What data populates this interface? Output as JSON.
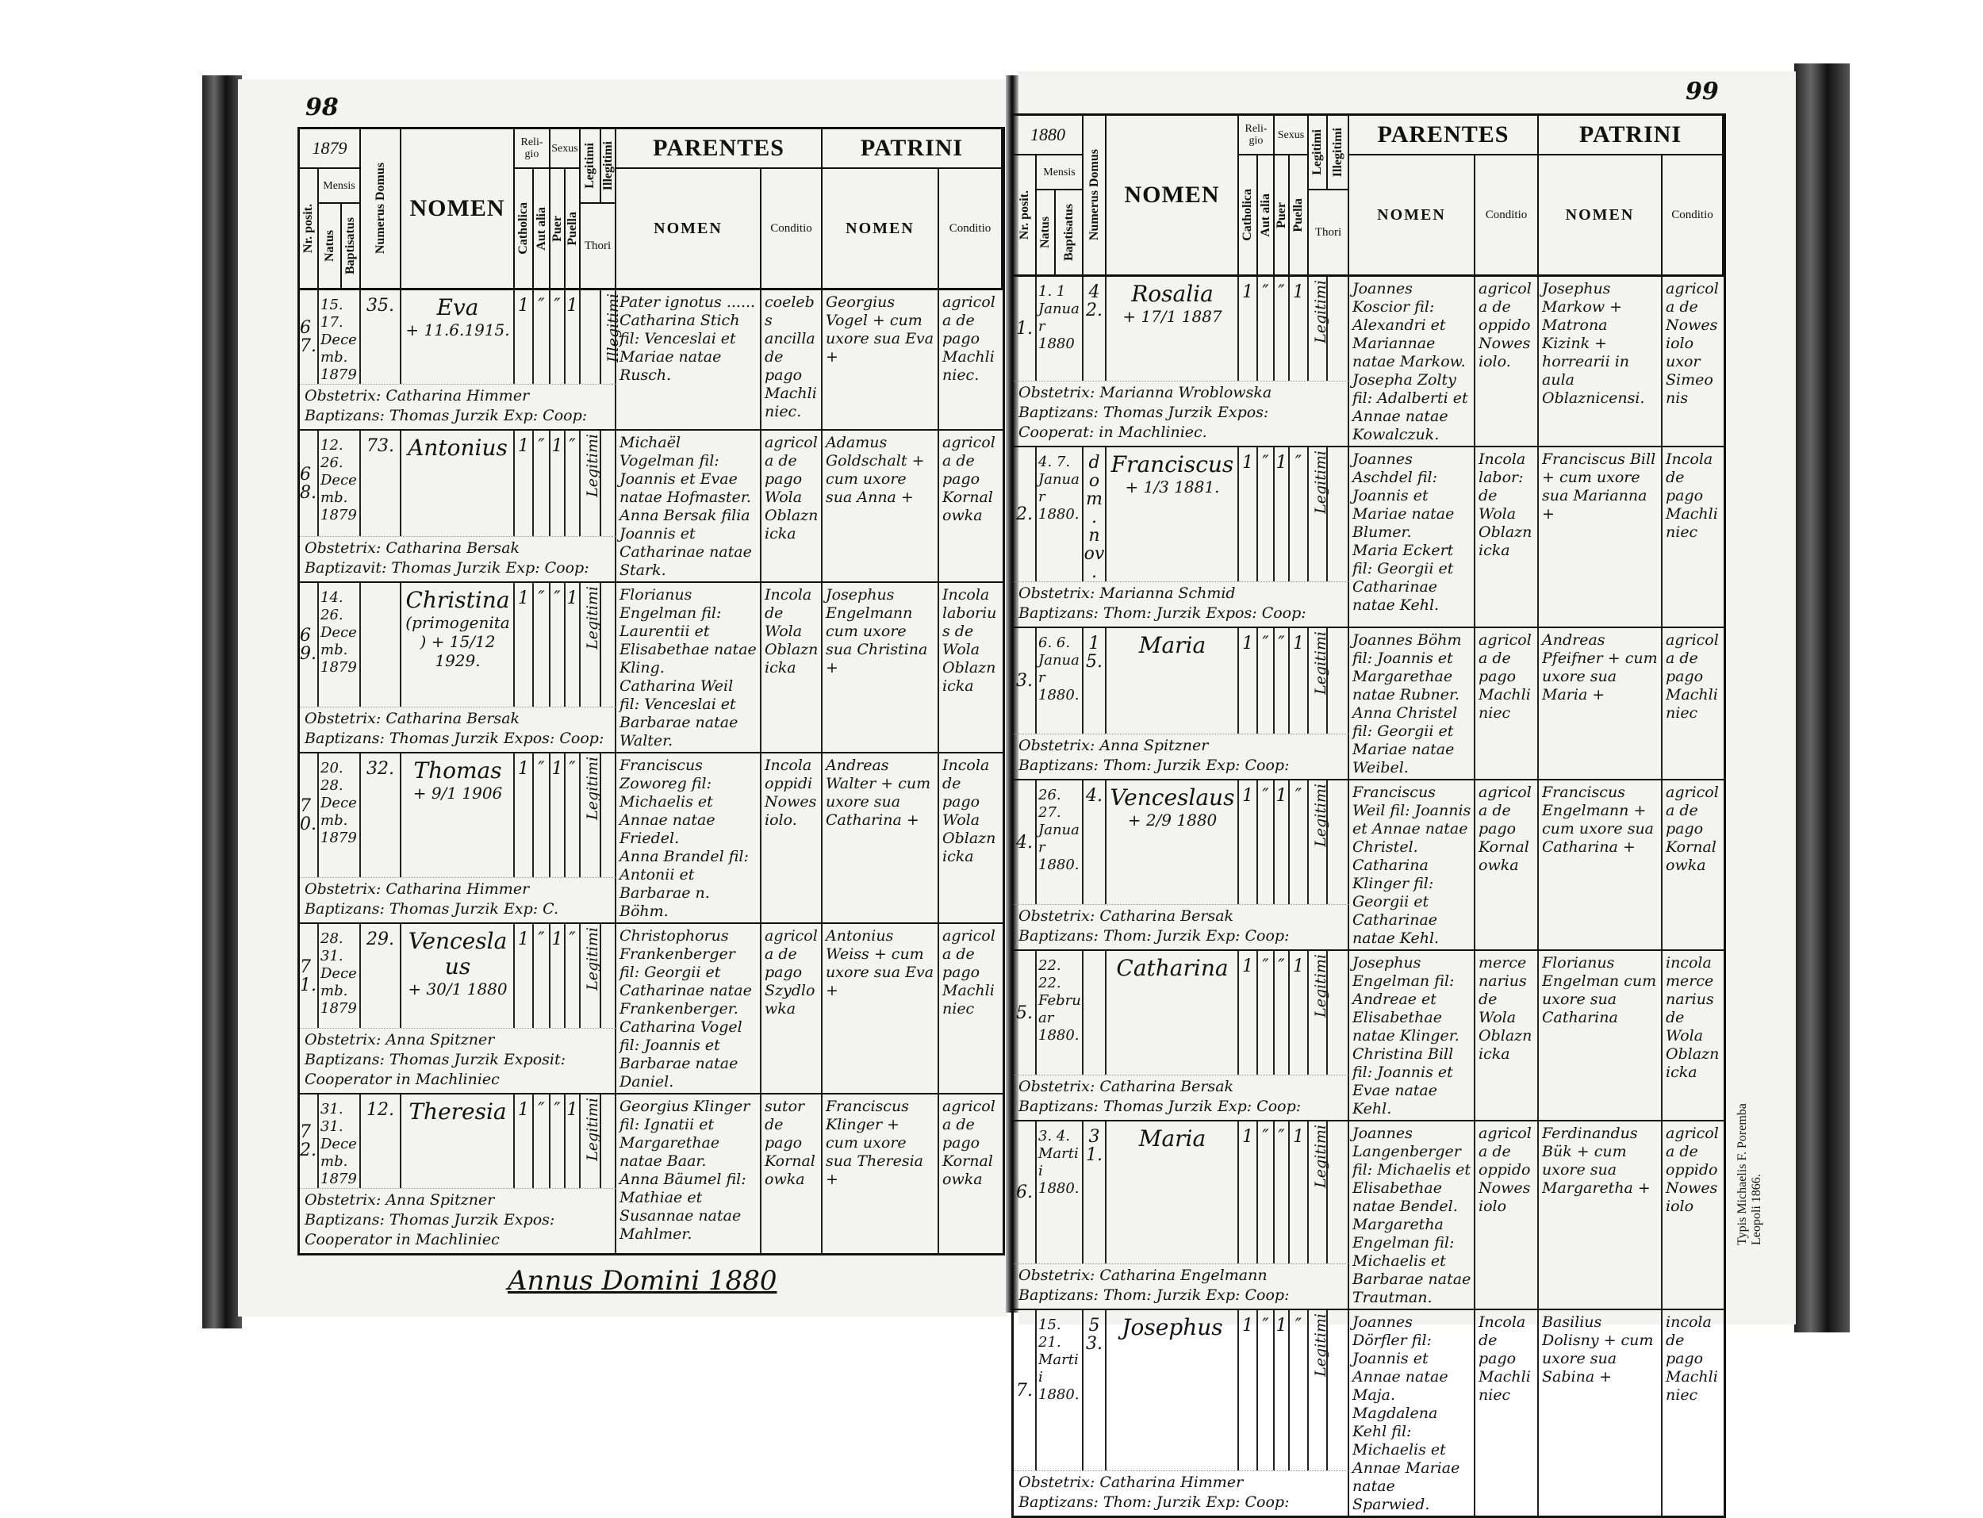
{
  "header": {
    "religio": "Reli-gio",
    "catholica": "Catholica",
    "aut_alia": "Aut alia",
    "sexus": "Sexus",
    "puer": "Puer",
    "puella": "Puella",
    "legitimi": "Legitimi",
    "illegitimi": "Illegitimi",
    "thori": "Thori",
    "nr_posit": "Nr. posit.",
    "mensis": "Mensis",
    "natus": "Natus",
    "baptisatus": "Baptisatus",
    "numerus_domus": "Numerus Domus",
    "nomen": "NOMEN",
    "parentes": "PARENTES",
    "patrini": "PATRINI",
    "sub_nomen": "NOMEN",
    "conditio": "Conditio"
  },
  "left_page": {
    "page_number": "98",
    "year": "1879",
    "footer": "Annus Domini 1880",
    "entries": [
      {
        "nr": "67.",
        "natus": "15.",
        "baptisatus": "17.",
        "month": "Decemb.",
        "year": "1879",
        "domus": "35.",
        "nomen": "Eva",
        "note": "+ 11.6.1915.",
        "religio": [
          "1",
          "″"
        ],
        "sexus": [
          "″",
          "1"
        ],
        "thori": "",
        "thori_ill": "Illegitimi",
        "obstetrix": "Obstetrix: Catharina Himmer",
        "baptizans": "Baptizans: Thomas Jurzik Exp: Coop:",
        "par_pater": "Pater ignotus ......",
        "par_mater": "Catharina Stich fil: Venceslai et Mariae natae Rusch.",
        "par_cond": "coelebs ancilla de pago Machliniec.",
        "pat_nomen": "Georgius Vogel + cum uxore sua Eva +",
        "pat_cond": "agricola de pago Machliniec."
      },
      {
        "nr": "68.",
        "natus": "12.",
        "baptisatus": "26.",
        "month": "Decemb.",
        "year": "1879",
        "domus": "73.",
        "nomen": "Antonius",
        "note": "",
        "religio": [
          "1",
          "″"
        ],
        "sexus": [
          "1",
          "″"
        ],
        "thori": "Legitimi",
        "thori_ill": "",
        "obstetrix": "Obstetrix: Catharina Bersak",
        "baptizans": "Baptizavit: Thomas Jurzik Exp: Coop:",
        "par_pater": "Michaël Vogelman fil: Joannis et Evae natae Hofmaster.",
        "par_mater": "Anna Bersak filia Joannis et Catharinae natae Stark.",
        "par_cond": "agricola de pago Wola Oblaznicka",
        "pat_nomen": "Adamus Goldschalt + cum uxore sua Anna +",
        "pat_cond": "agricola de pago Kornalowka"
      },
      {
        "nr": "69.",
        "natus": "14.",
        "baptisatus": "26.",
        "month": "Decemb.",
        "year": "1879",
        "domus": "",
        "nomen": "Christina",
        "note": "(primogenita) + 15/12 1929.",
        "religio": [
          "1",
          "″"
        ],
        "sexus": [
          "″",
          "1"
        ],
        "thori": "Legitimi",
        "thori_ill": "",
        "obstetrix": "Obstetrix: Catharina Bersak",
        "baptizans": "Baptizans: Thomas Jurzik Expos: Coop:",
        "par_pater": "Florianus Engelman fil: Laurentii et Elisabethae natae Kling.",
        "par_mater": "Catharina Weil fil: Venceslai et Barbarae natae Walter.",
        "par_cond": "Incola de Wola Oblaznicka",
        "pat_nomen": "Josephus Engelmann cum uxore sua Christina +",
        "pat_cond": "Incola laborius de Wola Oblaznicka"
      },
      {
        "nr": "70.",
        "natus": "20.",
        "baptisatus": "28.",
        "month": "Decemb.",
        "year": "1879",
        "domus": "32.",
        "nomen": "Thomas",
        "note": "+ 9/1 1906",
        "religio": [
          "1",
          "″"
        ],
        "sexus": [
          "1",
          "″"
        ],
        "thori": "Legitimi",
        "thori_ill": "",
        "obstetrix": "Obstetrix: Catharina Himmer",
        "baptizans": "Baptizans: Thomas Jurzik Exp: C.",
        "par_pater": "Franciscus Zoworeg fil: Michaelis et Annae natae Friedel.",
        "par_mater": "Anna Brandel fil: Antonii et Barbarae n. Böhm.",
        "par_cond": "Incola oppidi Nowesiolo.",
        "pat_nomen": "Andreas Walter + cum uxore sua Catharina +",
        "pat_cond": "Incola de pago Wola Oblaznicka"
      },
      {
        "nr": "71.",
        "natus": "28.",
        "baptisatus": "31.",
        "month": "Decemb.",
        "year": "1879",
        "domus": "29.",
        "nomen": "Venceslaus",
        "note": "+ 30/1 1880",
        "religio": [
          "1",
          "″"
        ],
        "sexus": [
          "1",
          "″"
        ],
        "thori": "Legitimi",
        "thori_ill": "",
        "obstetrix": "Obstetrix: Anna Spitzner",
        "baptizans": "Baptizans: Thomas Jurzik Exposit: Cooperator in Machliniec",
        "par_pater": "Christophorus Frankenberger fil: Georgii et Catharinae natae Frankenberger.",
        "par_mater": "Catharina Vogel fil: Joannis et Barbarae natae Daniel.",
        "par_cond": "agricola de pago Szydlowka",
        "pat_nomen": "Antonius Weiss + cum uxore sua Eva +",
        "pat_cond": "agricola de pago Machliniec"
      },
      {
        "nr": "72.",
        "natus": "31.",
        "baptisatus": "31.",
        "month": "Decemb.",
        "year": "1879",
        "domus": "12.",
        "nomen": "Theresia",
        "note": "",
        "religio": [
          "1",
          "″"
        ],
        "sexus": [
          "″",
          "1"
        ],
        "thori": "Legitimi",
        "thori_ill": "",
        "obstetrix": "Obstetrix: Anna Spitzner",
        "baptizans": "Baptizans: Thomas Jurzik Expos: Cooperator in Machliniec",
        "par_pater": "Georgius Klinger fil: Ignatii et Margarethae natae Baar.",
        "par_mater": "Anna Bäumel fil: Mathiae et Susannae natae Mahlmer.",
        "par_cond": "sutor de pago Kornalowka",
        "pat_nomen": "Franciscus Klinger + cum uxore sua Theresia +",
        "pat_cond": "agricola de pago Kornalowka"
      }
    ]
  },
  "right_page": {
    "page_number": "99",
    "year": "1880",
    "imprint": "Typis Michaelis F. Poremba Leopoli 1866.",
    "entries": [
      {
        "nr": "1.",
        "natus": "1.",
        "baptisatus": "1",
        "month": "Januar",
        "year": "1880",
        "domus": "42.",
        "nomen": "Rosalia",
        "note": "+ 17/1 1887",
        "religio": [
          "1",
          "″"
        ],
        "sexus": [
          "″",
          "1"
        ],
        "thori": "Legitimi",
        "thori_ill": "",
        "obstetrix": "Obstetrix: Marianna Wroblowska",
        "baptizans": "Baptizans: Thomas Jurzik Expos: Cooperat: in Machliniec.",
        "par_pater": "Joannes Koscior fil: Alexandri et Mariannae natae Markow.",
        "par_mater": "Josepha Zolty fil: Adalberti et Annae natae Kowalczuk.",
        "par_cond": "agricola de oppido Nowesiolo.",
        "pat_nomen": "Josephus Markow + Matrona Kizink + horrearii in aula Oblaznicensi.",
        "pat_cond": "agricola de Nowesiolo uxor Simeonis"
      },
      {
        "nr": "2.",
        "natus": "4.",
        "baptisatus": "7.",
        "month": "Januar",
        "year": "1880.",
        "domus": "dom. nov.",
        "nomen": "Franciscus",
        "note": "+ 1/3 1881.",
        "religio": [
          "1",
          "″"
        ],
        "sexus": [
          "1",
          "″"
        ],
        "thori": "Legitimi",
        "thori_ill": "",
        "obstetrix": "Obstetrix: Marianna Schmid",
        "baptizans": "Baptizans: Thom: Jurzik Expos: Coop:",
        "par_pater": "Joannes Aschdel fil: Joannis et Mariae natae Blumer.",
        "par_mater": "Maria Eckert fil: Georgii et Catharinae natae Kehl.",
        "par_cond": "Incola labor: de Wola Oblaznicka",
        "pat_nomen": "Franciscus Bill + cum uxore sua Marianna +",
        "pat_cond": "Incola de pago Machliniec"
      },
      {
        "nr": "3.",
        "natus": "6.",
        "baptisatus": "6.",
        "month": "Januar",
        "year": "1880.",
        "domus": "15.",
        "nomen": "Maria",
        "note": "",
        "religio": [
          "1",
          "″"
        ],
        "sexus": [
          "″",
          "1"
        ],
        "thori": "Legitimi",
        "thori_ill": "",
        "obstetrix": "Obstetrix: Anna Spitzner",
        "baptizans": "Baptizans: Thom: Jurzik Exp: Coop:",
        "par_pater": "Joannes Böhm fil: Joannis et Margarethae natae Rubner.",
        "par_mater": "Anna Christel fil: Georgii et Mariae natae Weibel.",
        "par_cond": "agricola de pago Machliniec",
        "pat_nomen": "Andreas Pfeifner + cum uxore sua Maria +",
        "pat_cond": "agricola de pago Machliniec"
      },
      {
        "nr": "4.",
        "natus": "26.",
        "baptisatus": "27.",
        "month": "Januar",
        "year": "1880.",
        "domus": "4.",
        "nomen": "Venceslaus",
        "note": "+ 2/9 1880",
        "religio": [
          "1",
          "″"
        ],
        "sexus": [
          "1",
          "″"
        ],
        "thori": "Legitimi",
        "thori_ill": "",
        "obstetrix": "Obstetrix: Catharina Bersak",
        "baptizans": "Baptizans: Thom: Jurzik Exp: Coop:",
        "par_pater": "Franciscus Weil fil: Joannis et Annae natae Christel.",
        "par_mater": "Catharina Klinger fil: Georgii et Catharinae natae Kehl.",
        "par_cond": "agricola de pago Kornalowka",
        "pat_nomen": "Franciscus Engelmann + cum uxore sua Catharina +",
        "pat_cond": "agricola de pago Kornalowka"
      },
      {
        "nr": "5.",
        "natus": "22.",
        "baptisatus": "22.",
        "month": "Februar",
        "year": "1880.",
        "domus": "",
        "nomen": "Catharina",
        "note": "",
        "religio": [
          "1",
          "″"
        ],
        "sexus": [
          "″",
          "1"
        ],
        "thori": "Legitimi",
        "thori_ill": "",
        "obstetrix": "Obstetrix: Catharina Bersak",
        "baptizans": "Baptizans: Thomas Jurzik Exp: Coop:",
        "par_pater": "Josephus Engelman fil: Andreae et Elisabethae natae Klinger.",
        "par_mater": "Christina Bill fil: Joannis et Evae natae Kehl.",
        "par_cond": "mercenarius de Wola Oblaznicka",
        "pat_nomen": "Florianus Engelman cum uxore sua Catharina",
        "pat_cond": "incola mercenarius de Wola Oblaznicka"
      },
      {
        "nr": "6.",
        "natus": "3.",
        "baptisatus": "4.",
        "month": "Martii",
        "year": "1880.",
        "domus": "31.",
        "nomen": "Maria",
        "note": "",
        "religio": [
          "1",
          "″"
        ],
        "sexus": [
          "″",
          "1"
        ],
        "thori": "Legitimi",
        "thori_ill": "",
        "obstetrix": "Obstetrix: Catharina Engelmann",
        "baptizans": "Baptizans: Thom: Jurzik Exp: Coop:",
        "par_pater": "Joannes Langenberger fil: Michaelis et Elisabethae natae Bendel.",
        "par_mater": "Margaretha Engelman fil: Michaelis et Barbarae natae Trautman.",
        "par_cond": "agricola de oppido Nowesiolo",
        "pat_nomen": "Ferdinandus Bük + cum uxore sua Margaretha +",
        "pat_cond": "agricola de oppido Nowesiolo"
      },
      {
        "nr": "7.",
        "natus": "15.",
        "baptisatus": "21.",
        "month": "Martii",
        "year": "1880.",
        "domus": "53.",
        "nomen": "Josephus",
        "note": "",
        "religio": [
          "1",
          "″"
        ],
        "sexus": [
          "1",
          "″"
        ],
        "thori": "Legitimi",
        "thori_ill": "",
        "obstetrix": "Obstetrix: Catharina Himmer",
        "baptizans": "Baptizans: Thom: Jurzik Exp: Coop:",
        "par_pater": "Joannes Dörfler fil: Joannis et Annae natae Maja.",
        "par_mater": "Magdalena Kehl fil: Michaelis et Annae Mariae natae Sparwied.",
        "par_cond": "Incola de pago Machliniec",
        "pat_nomen": "Basilius Dolisny + cum uxore sua Sabina +",
        "pat_cond": "incola de pago Machliniec"
      }
    ]
  }
}
